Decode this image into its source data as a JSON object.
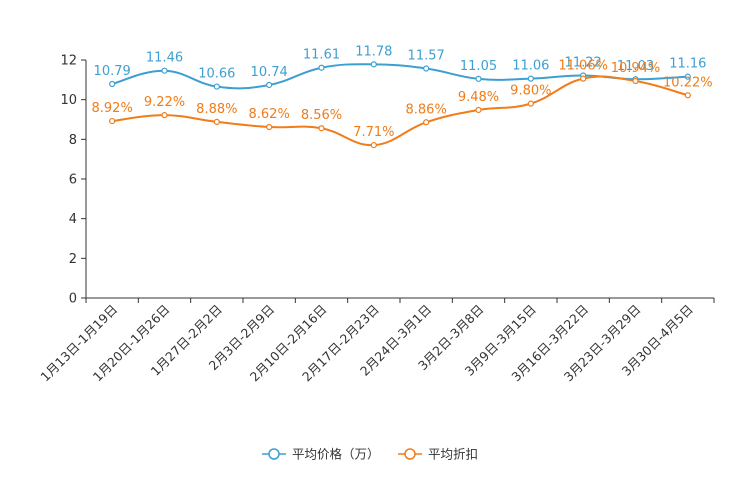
{
  "chart_data": {
    "type": "line",
    "title": "",
    "xlabel": "",
    "ylabel": "",
    "ylim": [
      0,
      12
    ],
    "yticks": [
      0,
      2,
      4,
      6,
      8,
      10,
      12
    ],
    "categories": [
      "1月13日-1月19日",
      "1月20日-1月26日",
      "1月27日-2月2日",
      "2月3日-2月9日",
      "2月10日-2月16日",
      "2月17日-2月23日",
      "2月24日-3月1日",
      "3月2日-3月8日",
      "3月9日-3月15日",
      "3月16日-3月22日",
      "3月23日-3月29日",
      "3月30日-4月5日"
    ],
    "series": [
      {
        "name": "平均价格（万）",
        "color": "#3d9fd1",
        "values": [
          10.79,
          11.46,
          10.66,
          10.74,
          11.61,
          11.78,
          11.57,
          11.05,
          11.06,
          11.22,
          11.03,
          11.16
        ],
        "labels": [
          "10.79",
          "11.46",
          "10.66",
          "10.74",
          "11.61",
          "11.78",
          "11.57",
          "11.05",
          "11.06",
          "11.22",
          "11.03",
          "11.16"
        ]
      },
      {
        "name": "平均折扣",
        "color": "#f07c1a",
        "values": [
          8.92,
          9.22,
          8.88,
          8.62,
          8.56,
          7.71,
          8.86,
          9.48,
          9.8,
          11.06,
          10.94,
          10.22
        ],
        "labels": [
          "8.92%",
          "9.22%",
          "8.88%",
          "8.62%",
          "8.56%",
          "7.71%",
          "8.86%",
          "9.48%",
          "9.80%",
          "11.06%",
          "10.94%",
          "10.22%"
        ]
      }
    ],
    "legend_position": "bottom"
  }
}
